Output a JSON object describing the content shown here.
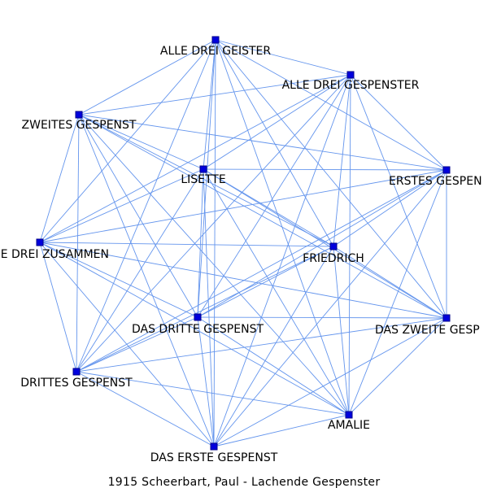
{
  "caption": "1915 Scheerbart, Paul - Lachende Gespenster",
  "colors": {
    "edge": "#6495ed",
    "node_fill": "#0000dd",
    "node_stroke": "#00008b",
    "label": "#000000",
    "background": "#ffffff"
  },
  "graph": {
    "nodes": [
      {
        "id": "alle_drei_geister",
        "label": "ALLE DREI GEISTER"
      },
      {
        "id": "alle_drei_gespenster",
        "label": "ALLE DREI GESPENSTER"
      },
      {
        "id": "zweites_gespenst",
        "label": "ZWEITES GESPENST"
      },
      {
        "id": "lisette",
        "label": "LISETTE"
      },
      {
        "id": "erstes_gespenst",
        "label": "ERSTES GESPEN"
      },
      {
        "id": "alle_drei_zusammen",
        "label": "E DREI ZUSAMMEN"
      },
      {
        "id": "friedrich",
        "label": "FRIEDRICH"
      },
      {
        "id": "das_dritte_gespenst",
        "label": "DAS DRITTE GESPENST"
      },
      {
        "id": "das_zweite_gespenst",
        "label": "DAS ZWEITE GESP"
      },
      {
        "id": "drittes_gespenst",
        "label": "DRITTES GESPENST"
      },
      {
        "id": "amalie",
        "label": "AMALIE"
      },
      {
        "id": "das_erste_gespenst",
        "label": "DAS ERSTE GESPENST"
      }
    ],
    "edges": [
      [
        "alle_drei_geister",
        "alle_drei_gespenster"
      ],
      [
        "alle_drei_geister",
        "zweites_gespenst"
      ],
      [
        "alle_drei_geister",
        "lisette"
      ],
      [
        "alle_drei_geister",
        "erstes_gespenst"
      ],
      [
        "alle_drei_geister",
        "alle_drei_zusammen"
      ],
      [
        "alle_drei_geister",
        "friedrich"
      ],
      [
        "alle_drei_geister",
        "das_dritte_gespenst"
      ],
      [
        "alle_drei_geister",
        "das_zweite_gespenst"
      ],
      [
        "alle_drei_geister",
        "drittes_gespenst"
      ],
      [
        "alle_drei_geister",
        "amalie"
      ],
      [
        "alle_drei_geister",
        "das_erste_gespenst"
      ],
      [
        "alle_drei_gespenster",
        "zweites_gespenst"
      ],
      [
        "alle_drei_gespenster",
        "lisette"
      ],
      [
        "alle_drei_gespenster",
        "erstes_gespenst"
      ],
      [
        "alle_drei_gespenster",
        "alle_drei_zusammen"
      ],
      [
        "alle_drei_gespenster",
        "friedrich"
      ],
      [
        "alle_drei_gespenster",
        "das_dritte_gespenst"
      ],
      [
        "alle_drei_gespenster",
        "das_zweite_gespenst"
      ],
      [
        "alle_drei_gespenster",
        "drittes_gespenst"
      ],
      [
        "alle_drei_gespenster",
        "amalie"
      ],
      [
        "alle_drei_gespenster",
        "das_erste_gespenst"
      ],
      [
        "zweites_gespenst",
        "lisette"
      ],
      [
        "zweites_gespenst",
        "erstes_gespenst"
      ],
      [
        "zweites_gespenst",
        "alle_drei_zusammen"
      ],
      [
        "zweites_gespenst",
        "friedrich"
      ],
      [
        "zweites_gespenst",
        "das_dritte_gespenst"
      ],
      [
        "zweites_gespenst",
        "das_zweite_gespenst"
      ],
      [
        "zweites_gespenst",
        "drittes_gespenst"
      ],
      [
        "zweites_gespenst",
        "amalie"
      ],
      [
        "zweites_gespenst",
        "das_erste_gespenst"
      ],
      [
        "lisette",
        "erstes_gespenst"
      ],
      [
        "lisette",
        "alle_drei_zusammen"
      ],
      [
        "lisette",
        "friedrich"
      ],
      [
        "lisette",
        "das_dritte_gespenst"
      ],
      [
        "lisette",
        "das_zweite_gespenst"
      ],
      [
        "lisette",
        "drittes_gespenst"
      ],
      [
        "lisette",
        "amalie"
      ],
      [
        "lisette",
        "das_erste_gespenst"
      ],
      [
        "erstes_gespenst",
        "alle_drei_zusammen"
      ],
      [
        "erstes_gespenst",
        "friedrich"
      ],
      [
        "erstes_gespenst",
        "das_dritte_gespenst"
      ],
      [
        "erstes_gespenst",
        "das_zweite_gespenst"
      ],
      [
        "erstes_gespenst",
        "drittes_gespenst"
      ],
      [
        "erstes_gespenst",
        "amalie"
      ],
      [
        "erstes_gespenst",
        "das_erste_gespenst"
      ],
      [
        "alle_drei_zusammen",
        "friedrich"
      ],
      [
        "alle_drei_zusammen",
        "das_dritte_gespenst"
      ],
      [
        "alle_drei_zusammen",
        "das_zweite_gespenst"
      ],
      [
        "alle_drei_zusammen",
        "drittes_gespenst"
      ],
      [
        "alle_drei_zusammen",
        "amalie"
      ],
      [
        "alle_drei_zusammen",
        "das_erste_gespenst"
      ],
      [
        "friedrich",
        "das_dritte_gespenst"
      ],
      [
        "friedrich",
        "das_zweite_gespenst"
      ],
      [
        "friedrich",
        "drittes_gespenst"
      ],
      [
        "friedrich",
        "amalie"
      ],
      [
        "friedrich",
        "das_erste_gespenst"
      ],
      [
        "das_dritte_gespenst",
        "das_zweite_gespenst"
      ],
      [
        "das_dritte_gespenst",
        "drittes_gespenst"
      ],
      [
        "das_dritte_gespenst",
        "amalie"
      ],
      [
        "das_dritte_gespenst",
        "das_erste_gespenst"
      ],
      [
        "das_zweite_gespenst",
        "drittes_gespenst"
      ],
      [
        "das_zweite_gespenst",
        "amalie"
      ],
      [
        "das_zweite_gespenst",
        "das_erste_gespenst"
      ],
      [
        "drittes_gespenst",
        "amalie"
      ],
      [
        "drittes_gespenst",
        "das_erste_gespenst"
      ],
      [
        "amalie",
        "das_erste_gespenst"
      ]
    ]
  }
}
